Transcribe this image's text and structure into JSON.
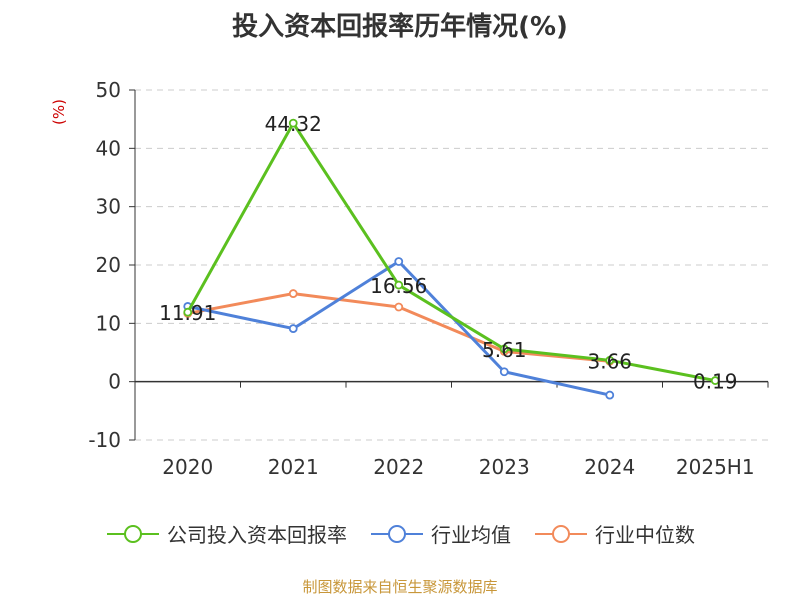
{
  "chart_data": {
    "type": "line",
    "title": "投入资本回报率历年情况(%)",
    "unit_label": "(%)",
    "categories": [
      "2020",
      "2021",
      "2022",
      "2023",
      "2024",
      "2025H1"
    ],
    "ylim": [
      -10,
      50
    ],
    "yticks": [
      -10,
      0,
      10,
      20,
      30,
      40,
      50
    ],
    "grid": true,
    "legend_position": "bottom",
    "series": [
      {
        "name": "公司投入资本回报率",
        "color": "#5bc01f",
        "values": [
          11.91,
          44.32,
          16.56,
          5.61,
          3.66,
          0.19
        ],
        "labeled": true
      },
      {
        "name": "行业均值",
        "color": "#4f81d9",
        "values": [
          12.9,
          9.1,
          20.6,
          1.7,
          -2.3,
          null
        ],
        "labeled": false
      },
      {
        "name": "行业中位数",
        "color": "#f28a5a",
        "values": [
          11.7,
          15.1,
          12.8,
          5.2,
          3.5,
          null
        ],
        "labeled": false
      }
    ],
    "data_labels": [
      "11.91",
      "44.32",
      "16.56",
      "5.61",
      "3.66",
      "0.19"
    ]
  },
  "source": "制图数据来自恒生聚源数据库"
}
